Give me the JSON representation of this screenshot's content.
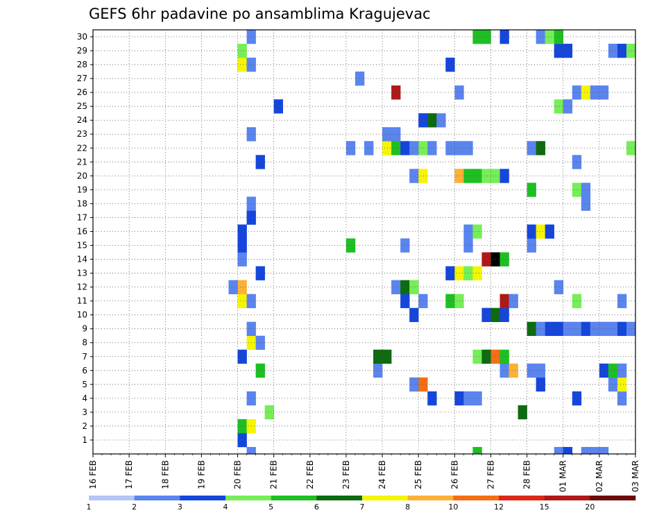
{
  "chart_data": {
    "type": "heatmap",
    "title": "GEFS 6hr padavine po ansamblima Kragujevac",
    "xlabel": "",
    "ylabel": "",
    "x_ticks": [
      "16 FEB",
      "17 FEB",
      "18 FEB",
      "19 FEB",
      "20 FEB",
      "21 FEB",
      "22 FEB",
      "23 FEB",
      "24 FEB",
      "25 FEB",
      "26 FEB",
      "27 FEB",
      "28 FEB",
      "01 MAR",
      "02 MAR",
      "03 MAR"
    ],
    "x_range_days": [
      0,
      15
    ],
    "y_ticks": [
      1,
      2,
      3,
      4,
      5,
      6,
      7,
      8,
      9,
      10,
      11,
      12,
      13,
      14,
      15,
      16,
      17,
      18,
      19,
      20,
      21,
      22,
      23,
      24,
      25,
      26,
      27,
      28,
      29,
      30
    ],
    "y_range": [
      0,
      30
    ],
    "grid": true,
    "legend": {
      "placement": "bottom",
      "labels": [
        "1",
        "2",
        "3",
        "4",
        "5",
        "6",
        "7",
        "8",
        "10",
        "12",
        "15",
        "20"
      ],
      "colors": [
        "#b3c6f7",
        "#5a84ee",
        "#1546dc",
        "#76ee57",
        "#1ebf23",
        "#0d6b10",
        "#f5f500",
        "#fbb135",
        "#f56e14",
        "#dc2814",
        "#b01818",
        "#6e0a0a"
      ]
    },
    "cells": [
      [
        4.25,
        0,
        1
      ],
      [
        12.75,
        0,
        1
      ],
      [
        13.0,
        0,
        2
      ],
      [
        13.5,
        0,
        1
      ],
      [
        13.75,
        0,
        1
      ],
      [
        14.0,
        0,
        1
      ],
      [
        10.5,
        0,
        4
      ],
      [
        4.0,
        1,
        2
      ],
      [
        4.0,
        2,
        4
      ],
      [
        4.25,
        2,
        6
      ],
      [
        4.75,
        3,
        3
      ],
      [
        11.75,
        3,
        5
      ],
      [
        4.25,
        4,
        1
      ],
      [
        9.25,
        4,
        2
      ],
      [
        10.0,
        4,
        2
      ],
      [
        10.25,
        4,
        1
      ],
      [
        10.5,
        4,
        1
      ],
      [
        13.25,
        4,
        2
      ],
      [
        14.5,
        4,
        1
      ],
      [
        8.75,
        5,
        1
      ],
      [
        9.0,
        5,
        8
      ],
      [
        12.25,
        5,
        2
      ],
      [
        14.25,
        5,
        1
      ],
      [
        14.5,
        5,
        6
      ],
      [
        4.5,
        6,
        4
      ],
      [
        7.75,
        6,
        1
      ],
      [
        11.25,
        6,
        1
      ],
      [
        11.5,
        6,
        7
      ],
      [
        12.0,
        6,
        1
      ],
      [
        12.25,
        6,
        1
      ],
      [
        14.0,
        6,
        2
      ],
      [
        14.25,
        6,
        4
      ],
      [
        14.5,
        6,
        1
      ],
      [
        4.0,
        7,
        2
      ],
      [
        7.75,
        7,
        5
      ],
      [
        8.0,
        7,
        5
      ],
      [
        10.5,
        7,
        3
      ],
      [
        10.75,
        7,
        5
      ],
      [
        11.0,
        7,
        8
      ],
      [
        11.25,
        7,
        4
      ],
      [
        4.25,
        8,
        6
      ],
      [
        4.5,
        8,
        1
      ],
      [
        4.25,
        9,
        1
      ],
      [
        12.0,
        9,
        5
      ],
      [
        12.25,
        9,
        1
      ],
      [
        12.5,
        9,
        2
      ],
      [
        12.75,
        9,
        2
      ],
      [
        13.0,
        9,
        1
      ],
      [
        13.25,
        9,
        1
      ],
      [
        13.5,
        9,
        2
      ],
      [
        13.75,
        9,
        1
      ],
      [
        14.0,
        9,
        1
      ],
      [
        14.25,
        9,
        1
      ],
      [
        14.5,
        9,
        2
      ],
      [
        14.75,
        9,
        1
      ],
      [
        8.75,
        10,
        2
      ],
      [
        10.75,
        10,
        2
      ],
      [
        11.0,
        10,
        5
      ],
      [
        11.25,
        10,
        2
      ],
      [
        4.0,
        11,
        6
      ],
      [
        4.25,
        11,
        1
      ],
      [
        8.5,
        11,
        2
      ],
      [
        9.0,
        11,
        1
      ],
      [
        9.75,
        11,
        4
      ],
      [
        10.0,
        11,
        3
      ],
      [
        11.25,
        11,
        10
      ],
      [
        11.5,
        11,
        1
      ],
      [
        13.25,
        11,
        3
      ],
      [
        14.5,
        11,
        1
      ],
      [
        3.75,
        12,
        1
      ],
      [
        4.0,
        12,
        7
      ],
      [
        8.25,
        12,
        1
      ],
      [
        8.5,
        12,
        5
      ],
      [
        8.75,
        12,
        3
      ],
      [
        12.75,
        12,
        1
      ],
      [
        4.5,
        13,
        2
      ],
      [
        9.75,
        13,
        2
      ],
      [
        10.0,
        13,
        6
      ],
      [
        10.25,
        13,
        3
      ],
      [
        10.5,
        13,
        6
      ],
      [
        4.0,
        14,
        1
      ],
      [
        10.75,
        14,
        10
      ],
      [
        11.0,
        14,
        15
      ],
      [
        11.25,
        14,
        4
      ],
      [
        4.0,
        15,
        2
      ],
      [
        7.0,
        15,
        4
      ],
      [
        8.5,
        15,
        1
      ],
      [
        10.25,
        15,
        1
      ],
      [
        12.0,
        15,
        1
      ],
      [
        4.0,
        16,
        2
      ],
      [
        10.25,
        16,
        1
      ],
      [
        10.5,
        16,
        3
      ],
      [
        12.0,
        16,
        2
      ],
      [
        12.25,
        16,
        6
      ],
      [
        12.5,
        16,
        2
      ],
      [
        4.25,
        17,
        2
      ],
      [
        4.25,
        18,
        1
      ],
      [
        13.5,
        18,
        1
      ],
      [
        12.0,
        19,
        4
      ],
      [
        13.25,
        19,
        3
      ],
      [
        13.5,
        19,
        1
      ],
      [
        8.75,
        20,
        1
      ],
      [
        9.0,
        20,
        6
      ],
      [
        10.0,
        20,
        7
      ],
      [
        10.25,
        20,
        4
      ],
      [
        10.5,
        20,
        4
      ],
      [
        10.75,
        20,
        3
      ],
      [
        11.0,
        20,
        3
      ],
      [
        11.25,
        20,
        2
      ],
      [
        4.5,
        21,
        2
      ],
      [
        13.25,
        21,
        1
      ],
      [
        7.0,
        22,
        1
      ],
      [
        7.5,
        22,
        1
      ],
      [
        8.0,
        22,
        6
      ],
      [
        8.25,
        22,
        4
      ],
      [
        8.5,
        22,
        2
      ],
      [
        8.75,
        22,
        1
      ],
      [
        9.0,
        22,
        3
      ],
      [
        9.25,
        22,
        1
      ],
      [
        9.75,
        22,
        1
      ],
      [
        10.0,
        22,
        1
      ],
      [
        10.25,
        22,
        1
      ],
      [
        12.0,
        22,
        1
      ],
      [
        12.25,
        22,
        5
      ],
      [
        14.75,
        22,
        3
      ],
      [
        4.25,
        23,
        1
      ],
      [
        8.0,
        23,
        1
      ],
      [
        8.25,
        23,
        1
      ],
      [
        9.0,
        24,
        2
      ],
      [
        9.25,
        24,
        5
      ],
      [
        9.5,
        24,
        1
      ],
      [
        5.0,
        25,
        2
      ],
      [
        12.75,
        25,
        3
      ],
      [
        13.0,
        25,
        1
      ],
      [
        8.25,
        26,
        10
      ],
      [
        10.0,
        26,
        1
      ],
      [
        13.25,
        26,
        1
      ],
      [
        13.5,
        26,
        6
      ],
      [
        13.75,
        26,
        1
      ],
      [
        14.0,
        26,
        1
      ],
      [
        7.25,
        27,
        1
      ],
      [
        4.0,
        28,
        6
      ],
      [
        4.25,
        28,
        1
      ],
      [
        9.75,
        28,
        2
      ],
      [
        4.0,
        29,
        3
      ],
      [
        12.75,
        29,
        2
      ],
      [
        13.0,
        29,
        2
      ],
      [
        14.25,
        29,
        1
      ],
      [
        14.5,
        29,
        2
      ],
      [
        14.75,
        29,
        3
      ],
      [
        4.25,
        30,
        1
      ],
      [
        10.5,
        30,
        4
      ],
      [
        10.75,
        30,
        4
      ],
      [
        11.25,
        30,
        2
      ],
      [
        12.25,
        30,
        1
      ],
      [
        12.5,
        30,
        3
      ],
      [
        12.75,
        30,
        4
      ]
    ]
  }
}
